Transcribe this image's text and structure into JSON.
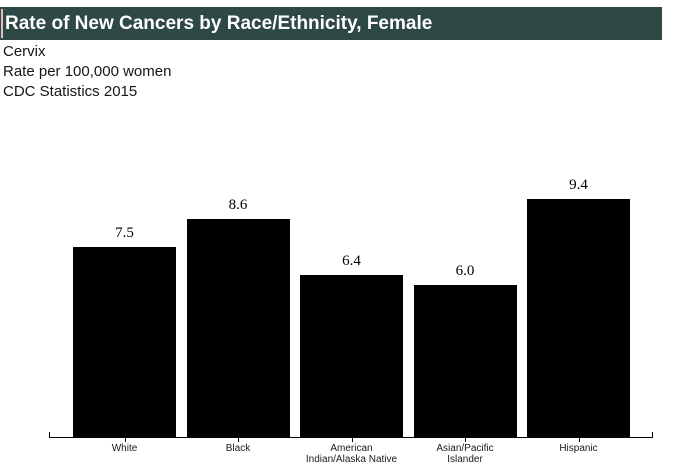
{
  "header": {
    "title": "Rate of New Cancers by Race/Ethnicity, Female",
    "subtitle_lines": [
      "Cervix",
      "Rate per 100,000 women",
      "CDC Statistics 2015"
    ]
  },
  "colors": {
    "title_bar_bg": "#2d4845",
    "title_text": "#ffffff",
    "text_cursor": "#e2bfbd",
    "bar_fill": "#000000",
    "axis": "#000000",
    "subtitle_text": "#161616"
  },
  "chart_data": {
    "type": "bar",
    "title": "Rate of New Cancers by Race/Ethnicity, Female",
    "subtitle": "Cervix",
    "categories": [
      "White",
      "Black",
      "American Indian/Alaska Native",
      "Asian/Pacific Islander",
      "Hispanic"
    ],
    "values": [
      7.5,
      8.6,
      6.4,
      6.0,
      9.4
    ],
    "value_labels": [
      "7.5",
      "8.6",
      "6.4",
      "6.0",
      "9.4"
    ],
    "x_tick_lines": [
      [
        "White"
      ],
      [
        "Black"
      ],
      [
        "American",
        "Indian/Alaska Native"
      ],
      [
        "Asian/Pacific",
        "Islander"
      ],
      [
        "Hispanic"
      ]
    ],
    "xlabel": "",
    "ylabel": "Rate per 100,000 women",
    "source": "CDC Statistics 2015",
    "ylim": [
      0,
      10
    ],
    "bar_color": "#000000",
    "grid": false,
    "legend": false,
    "y_axis_shown": false
  }
}
